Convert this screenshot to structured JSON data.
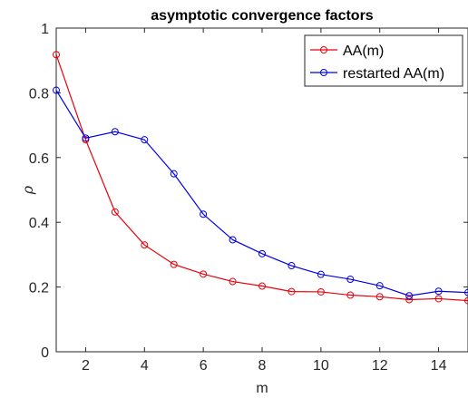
{
  "chart_data": {
    "type": "line",
    "title": "asymptotic convergence factors",
    "xlabel": "m",
    "ylabel": "ρ",
    "xlim": [
      1,
      15
    ],
    "ylim": [
      0,
      1
    ],
    "xticks": [
      2,
      4,
      6,
      8,
      10,
      12,
      14
    ],
    "yticks": [
      0,
      0.2,
      0.4,
      0.6,
      0.8,
      1
    ],
    "ytick_labels": [
      "0",
      "0.2",
      "0.4",
      "0.6",
      "0.8",
      "1"
    ],
    "grid": false,
    "legend_position": "top-right",
    "series": [
      {
        "name": "AA(m)",
        "color": "#e8000b",
        "marker": "circle",
        "x": [
          1,
          2,
          3,
          4,
          5,
          6,
          7,
          8,
          9,
          10,
          11,
          12,
          13,
          14,
          15
        ],
        "y": [
          0.918,
          0.655,
          0.432,
          0.33,
          0.27,
          0.24,
          0.217,
          0.203,
          0.186,
          0.185,
          0.175,
          0.17,
          0.161,
          0.164,
          0.158
        ]
      },
      {
        "name": "restarted AA(m)",
        "color": "#0000e6",
        "marker": "circle",
        "x": [
          1,
          2,
          3,
          4,
          5,
          6,
          7,
          8,
          9,
          10,
          11,
          12,
          13,
          14,
          15
        ],
        "y": [
          0.808,
          0.66,
          0.68,
          0.655,
          0.55,
          0.425,
          0.346,
          0.303,
          0.266,
          0.239,
          0.224,
          0.204,
          0.173,
          0.187,
          0.183
        ]
      }
    ]
  }
}
